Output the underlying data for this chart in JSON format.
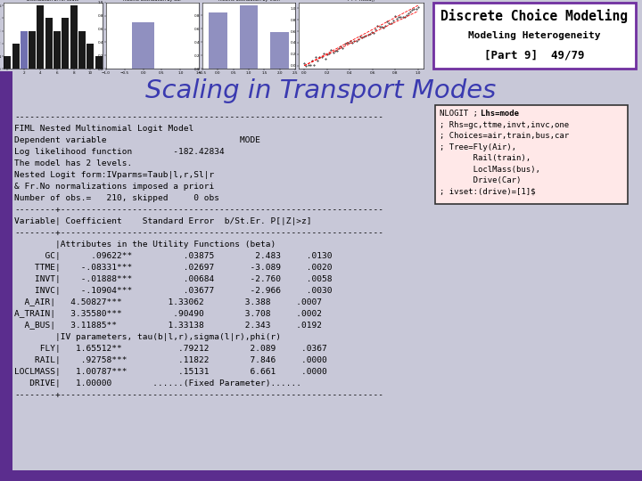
{
  "title": "Scaling in Transport Modes",
  "header_line1": "Discrete Choice Modeling",
  "header_line2": "Modeling Heterogeneity",
  "header_line3": "[Part 9]  49/79",
  "body_text": [
    "------------------------------------------------------------------------",
    "FIML Nested Multinomial Logit Model",
    "Dependent variable                          MODE",
    "Log likelihood function        -182.42834",
    "The model has 2 levels.",
    "Nested Logit form:IVparms=Taub|l,r,Sl|r",
    "& Fr.No normalizations imposed a priori",
    "Number of obs.=   210, skipped     0 obs",
    "--------+---------------------------------------------------------------",
    "Variable| Coefficient    Standard Error  b/St.Er. P[|Z|>z]",
    "--------+---------------------------------------------------------------",
    "        |Attributes in the Utility Functions (beta)",
    "      GC|      .09622**          .03875        2.483     .0130",
    "    TTME|    -.08331***          .02697       -3.089     .0020",
    "    INVT|    -.01888***          .00684       -2.760     .0058",
    "    INVC|    -.10904***          .03677       -2.966     .0030",
    "  A_AIR|   4.50827***         1.33062        3.388     .0007",
    "A_TRAIN|   3.35580***          .90490        3.708     .0002",
    "  A_BUS|   3.11885**          1.33138        2.343     .0192",
    "        |IV parameters, tau(b|l,r),sigma(l|r),phi(r)",
    "     FLY|   1.65512**           .79212        2.089     .0367",
    "    RAIL|    .92758***          .11822        7.846     .0000",
    "LOCLMASS|   1.00787***          .15131        6.661     .0000",
    "   DRIVE|   1.00000        ......(Fixed Parameter)......",
    "--------+---------------------------------------------------------------"
  ],
  "sidebar_text": [
    "NLOGIT ; Lhs=mode",
    "; Rhs=gc,ttme,invt,invc,one",
    "; Choices=air,train,bus,car",
    "; Tree=Fly(Air),",
    "       Rail(train),",
    "       LoclMass(bus),",
    "       Drive(Car)",
    "; ivset:(drive)=[1]$"
  ],
  "header_border": "#7030a0",
  "sidebar_bg": "#ffe8e8",
  "left_bar_color": "#5b2d8e",
  "bottom_bar_color": "#5b2d8e",
  "banner_bg": "#c8c8d8",
  "mini_chart_bg": "#e8e8f0"
}
